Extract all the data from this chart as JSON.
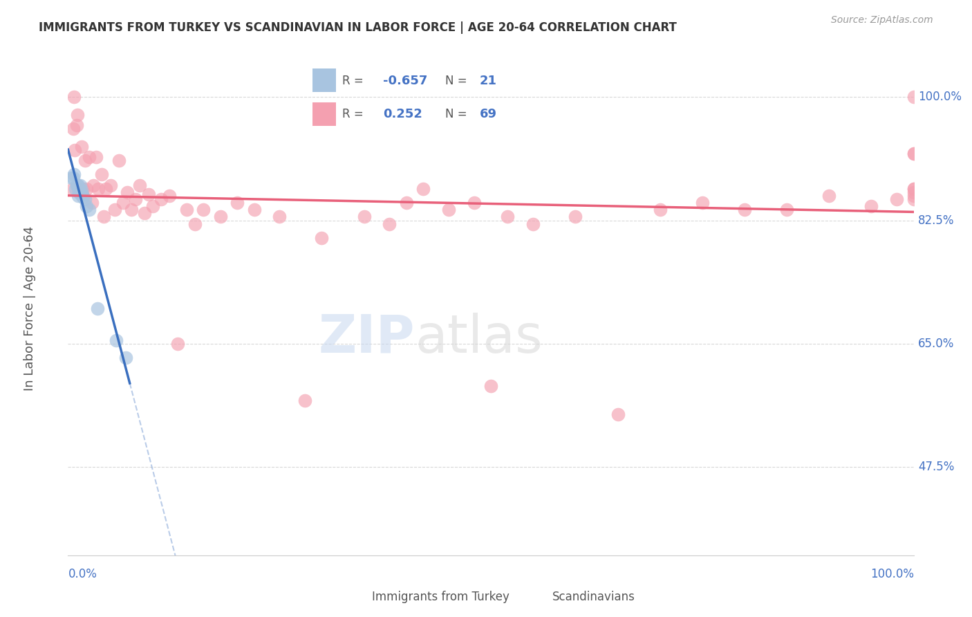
{
  "title": "IMMIGRANTS FROM TURKEY VS SCANDINAVIAN IN LABOR FORCE | AGE 20-64 CORRELATION CHART",
  "source": "Source: ZipAtlas.com",
  "ylabel": "In Labor Force | Age 20-64",
  "xlim": [
    0.0,
    1.0
  ],
  "ylim": [
    0.35,
    1.05
  ],
  "yticks": [
    0.475,
    0.65,
    0.825,
    1.0
  ],
  "ytick_labels": [
    "47.5%",
    "65.0%",
    "82.5%",
    "100.0%"
  ],
  "legend_r_turkey": "-0.657",
  "legend_n_turkey": "21",
  "legend_r_scand": "0.252",
  "legend_n_scand": "69",
  "turkey_color": "#a8c4e0",
  "scand_color": "#f4a0b0",
  "turkey_line_color": "#3a6fbf",
  "scand_line_color": "#e8607a",
  "turkey_x": [
    0.004,
    0.006,
    0.007,
    0.009,
    0.01,
    0.011,
    0.012,
    0.012,
    0.013,
    0.013,
    0.014,
    0.015,
    0.016,
    0.017,
    0.018,
    0.02,
    0.022,
    0.025,
    0.035,
    0.057,
    0.068
  ],
  "turkey_y": [
    0.885,
    0.885,
    0.89,
    0.87,
    0.875,
    0.875,
    0.875,
    0.86,
    0.87,
    0.865,
    0.875,
    0.862,
    0.868,
    0.862,
    0.858,
    0.855,
    0.845,
    0.84,
    0.7,
    0.655,
    0.63
  ],
  "scand_x": [
    0.005,
    0.006,
    0.007,
    0.008,
    0.01,
    0.011,
    0.012,
    0.014,
    0.016,
    0.018,
    0.02,
    0.022,
    0.025,
    0.028,
    0.03,
    0.033,
    0.036,
    0.04,
    0.042,
    0.045,
    0.05,
    0.055,
    0.06,
    0.065,
    0.07,
    0.075,
    0.08,
    0.085,
    0.09,
    0.095,
    0.1,
    0.11,
    0.12,
    0.13,
    0.14,
    0.15,
    0.16,
    0.18,
    0.2,
    0.22,
    0.25,
    0.28,
    0.3,
    0.35,
    0.38,
    0.4,
    0.42,
    0.45,
    0.48,
    0.5,
    0.52,
    0.55,
    0.6,
    0.65,
    0.7,
    0.75,
    0.8,
    0.85,
    0.9,
    0.95,
    0.98,
    1.0,
    1.0,
    1.0,
    1.0,
    1.0,
    1.0,
    1.0,
    1.0
  ],
  "scand_y": [
    0.87,
    0.955,
    1.0,
    0.925,
    0.96,
    0.975,
    0.87,
    0.87,
    0.93,
    0.87,
    0.91,
    0.87,
    0.915,
    0.85,
    0.875,
    0.915,
    0.87,
    0.89,
    0.83,
    0.87,
    0.875,
    0.84,
    0.91,
    0.85,
    0.865,
    0.84,
    0.855,
    0.875,
    0.835,
    0.862,
    0.845,
    0.855,
    0.86,
    0.65,
    0.84,
    0.82,
    0.84,
    0.83,
    0.85,
    0.84,
    0.83,
    0.57,
    0.8,
    0.83,
    0.82,
    0.85,
    0.87,
    0.84,
    0.85,
    0.59,
    0.83,
    0.82,
    0.83,
    0.55,
    0.84,
    0.85,
    0.84,
    0.84,
    0.86,
    0.845,
    0.855,
    0.865,
    0.92,
    0.87,
    0.86,
    0.855,
    0.87,
    0.92,
    1.0
  ],
  "background_color": "#ffffff",
  "grid_color": "#d8d8d8"
}
